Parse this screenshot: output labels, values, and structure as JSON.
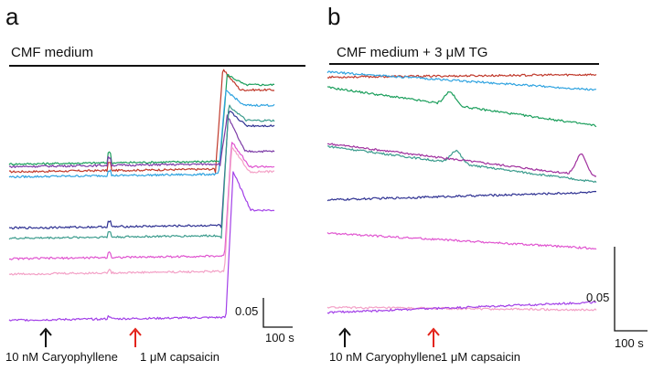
{
  "chart_data": [
    {
      "type": "line",
      "panel_label": "a",
      "condition_label": "CMF medium",
      "annotations": {
        "arrow_black_label": "10 nM Caryophyllene",
        "arrow_red_label": "1 μM capsaicin"
      },
      "scale_bar": {
        "y_label": "0.05",
        "x_label": "100 s"
      },
      "x_unit_note": "time in s; caryophyllene at 0 s, capsaicin at 340 s",
      "series": [
        {
          "color": "#c0392b",
          "baseline": 0.6,
          "t_spike": 340,
          "spike": 0.03,
          "t_rise": 700,
          "peak": 1.0,
          "plateau": 0.92
        },
        {
          "color": "#1a9e5b",
          "baseline": 0.63,
          "t_spike": 340,
          "spike": 0.04,
          "t_rise": 715,
          "peak": 0.98,
          "plateau": 0.94
        },
        {
          "color": "#2fa3e0",
          "baseline": 0.58,
          "t_spike": 340,
          "spike": 0.02,
          "t_rise": 710,
          "peak": 0.92,
          "plateau": 0.86
        },
        {
          "color": "#7c3aa6",
          "baseline": 0.62,
          "t_spike": 340,
          "spike": 0.03,
          "t_rise": 715,
          "peak": 0.82,
          "plateau": 0.68
        },
        {
          "color": "#2e3192",
          "baseline": 0.38,
          "t_spike": 340,
          "spike": 0.02,
          "t_rise": 720,
          "peak": 0.84,
          "plateau": 0.78
        },
        {
          "color": "#3a9b8c",
          "baseline": 0.34,
          "t_spike": 340,
          "spike": 0.02,
          "t_rise": 720,
          "peak": 0.86,
          "plateau": 0.8
        },
        {
          "color": "#e055d0",
          "baseline": 0.26,
          "t_spike": 340,
          "spike": 0.02,
          "t_rise": 730,
          "peak": 0.72,
          "plateau": 0.62
        },
        {
          "color": "#f3a0c6",
          "baseline": 0.2,
          "t_spike": 340,
          "spike": 0.01,
          "t_rise": 730,
          "peak": 0.7,
          "plateau": 0.6
        },
        {
          "color": "#a23fe8",
          "baseline": 0.02,
          "t_spike": 340,
          "spike": 0.01,
          "t_rise": 735,
          "peak": 0.6,
          "plateau": 0.45
        }
      ]
    },
    {
      "type": "line",
      "panel_label": "b",
      "condition_label": "CMF medium + 3 μM TG",
      "annotations": {
        "arrow_black_label": "10 nM Caryophyllene",
        "arrow_red_label": "1 μM capsaicin"
      },
      "scale_bar": {
        "y_label": "0.05",
        "x_label": "100 s"
      },
      "x_unit_note": "time in s; caryophyllene at 0 s, capsaicin at 340 s",
      "series": [
        {
          "color": "#c0392b",
          "start": 0.97,
          "end": 0.98,
          "bump_t": 0,
          "bump": 0.0
        },
        {
          "color": "#2fa3e0",
          "start": 0.99,
          "end": 0.92,
          "bump_t": 0,
          "bump": 0.0
        },
        {
          "color": "#1a9e5b",
          "start": 0.93,
          "end": 0.78,
          "bump_t": 410,
          "bump": 0.05
        },
        {
          "color": "#3a9b8c",
          "start": 0.7,
          "end": 0.56,
          "bump_t": 430,
          "bump": 0.05
        },
        {
          "color": "#a0309e",
          "start": 0.71,
          "end": 0.58,
          "bump_t": 850,
          "bump": 0.08
        },
        {
          "color": "#2e3192",
          "start": 0.49,
          "end": 0.52,
          "bump_t": 0,
          "bump": 0.0
        },
        {
          "color": "#e055d0",
          "start": 0.36,
          "end": 0.3,
          "bump_t": 0,
          "bump": 0.0
        },
        {
          "color": "#f3a0c6",
          "start": 0.07,
          "end": 0.06,
          "bump_t": 0,
          "bump": 0.0
        },
        {
          "color": "#a23fe8",
          "start": 0.05,
          "end": 0.09,
          "bump_t": 0,
          "bump": 0.0
        }
      ]
    }
  ]
}
